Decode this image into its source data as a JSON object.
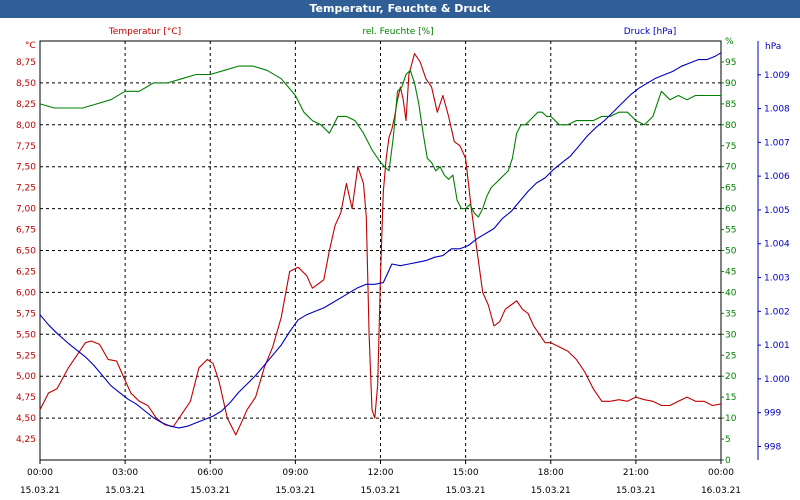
{
  "window": {
    "title": "Temperatur, Feuchte & Druck"
  },
  "colors": {
    "temp": "#c00000",
    "hum": "#008000",
    "press": "#0000c0",
    "title_bg": "#2f5f96"
  },
  "chart_data": {
    "type": "line",
    "title": "Temperatur, Feuchte & Druck",
    "x_ticks": [
      {
        "time": "00:00",
        "date": "15.03.21"
      },
      {
        "time": "03:00",
        "date": "15.03.21"
      },
      {
        "time": "06:00",
        "date": "15.03.21"
      },
      {
        "time": "09:00",
        "date": "15.03.21"
      },
      {
        "time": "12:00",
        "date": "15.03.21"
      },
      {
        "time": "15:00",
        "date": "15.03.21"
      },
      {
        "time": "18:00",
        "date": "15.03.21"
      },
      {
        "time": "21:00",
        "date": "15.03.21"
      },
      {
        "time": "00:00",
        "date": "16.03.21"
      }
    ],
    "x_range_hours": [
      0,
      24
    ],
    "axes": {
      "temp": {
        "unit": "°C",
        "ylim": [
          4.0,
          9.0
        ],
        "ticks": [
          "4,25",
          "4,50",
          "4,75",
          "5,00",
          "5,25",
          "5,50",
          "5,75",
          "6,00",
          "6,25",
          "6,50",
          "6,75",
          "7,00",
          "7,25",
          "7,50",
          "7,75",
          "8,00",
          "8,25",
          "8,50",
          "8,75"
        ]
      },
      "hum": {
        "unit": "%",
        "ylim": [
          0,
          100
        ],
        "ticks": [
          "0",
          "5",
          "10",
          "15",
          "20",
          "25",
          "30",
          "35",
          "40",
          "45",
          "50",
          "55",
          "60",
          "65",
          "70",
          "75",
          "80",
          "85",
          "90",
          "95",
          "%"
        ]
      },
      "press": {
        "unit": "hPa",
        "ylim": [
          997.6,
          1010.0
        ],
        "ticks": [
          "998",
          "999",
          "1.000",
          "1.001",
          "1.002",
          "1.003",
          "1.004",
          "1.005",
          "1.006",
          "1.007",
          "1.008",
          "1.009",
          "hPa"
        ]
      }
    },
    "series": [
      {
        "name": "Temperatur [°C]",
        "axis": "temp",
        "x": [
          0,
          0.3,
          0.6,
          1,
          1.3,
          1.6,
          1.8,
          2.1,
          2.4,
          2.7,
          3,
          3.2,
          3.5,
          3.8,
          4.1,
          4.4,
          4.7,
          5,
          5.3,
          5.6,
          5.9,
          6.1,
          6.3,
          6.6,
          6.9,
          7.1,
          7.3,
          7.6,
          7.9,
          8.2,
          8.5,
          8.8,
          9.1,
          9.4,
          9.6,
          9.8,
          10,
          10.2,
          10.4,
          10.6,
          10.8,
          11,
          11.2,
          11.4,
          11.5,
          11.6,
          11.7,
          11.8,
          11.9,
          12,
          12.1,
          12.2,
          12.3,
          12.4,
          12.5,
          12.6,
          12.7,
          12.8,
          12.9,
          13,
          13.2,
          13.4,
          13.6,
          13.8,
          14,
          14.2,
          14.4,
          14.6,
          14.8,
          15,
          15.2,
          15.4,
          15.6,
          15.8,
          16,
          16.2,
          16.4,
          16.6,
          16.8,
          17,
          17.2,
          17.4,
          17.6,
          17.8,
          18,
          18.3,
          18.6,
          18.9,
          19.2,
          19.5,
          19.8,
          20.1,
          20.4,
          20.7,
          21,
          21.3,
          21.6,
          21.9,
          22.2,
          22.5,
          22.8,
          23.1,
          23.4,
          23.7,
          24
        ],
        "values": [
          4.6,
          4.8,
          4.85,
          5.1,
          5.25,
          5.4,
          5.42,
          5.38,
          5.2,
          5.18,
          4.95,
          4.8,
          4.7,
          4.65,
          4.5,
          4.42,
          4.4,
          4.55,
          4.7,
          5.1,
          5.2,
          5.15,
          4.95,
          4.5,
          4.3,
          4.45,
          4.6,
          4.75,
          5.1,
          5.35,
          5.7,
          6.25,
          6.3,
          6.2,
          6.05,
          6.1,
          6.15,
          6.5,
          6.8,
          6.95,
          7.3,
          7.0,
          7.5,
          7.3,
          6.9,
          5.5,
          4.6,
          4.5,
          4.9,
          6.2,
          7.2,
          7.6,
          7.85,
          7.95,
          8.1,
          8.3,
          8.45,
          8.3,
          8.05,
          8.6,
          8.85,
          8.75,
          8.55,
          8.45,
          8.15,
          8.35,
          8.1,
          7.8,
          7.75,
          7.6,
          7.0,
          6.5,
          6.0,
          5.85,
          5.6,
          5.65,
          5.8,
          5.85,
          5.9,
          5.8,
          5.75,
          5.6,
          5.5,
          5.4,
          5.4,
          5.35,
          5.3,
          5.2,
          5.05,
          4.85,
          4.7,
          4.7,
          4.72,
          4.7,
          4.75,
          4.72,
          4.7,
          4.65,
          4.65,
          4.7,
          4.75,
          4.7,
          4.7,
          4.65,
          4.67
        ]
      },
      {
        "name": "rel. Feuchte [%]",
        "axis": "hum",
        "x": [
          0,
          0.5,
          1,
          1.5,
          2,
          2.5,
          3,
          3.5,
          4,
          4.5,
          5,
          5.5,
          6,
          6.5,
          7,
          7.5,
          8,
          8.5,
          9,
          9.3,
          9.6,
          9.9,
          10.2,
          10.5,
          10.8,
          11.1,
          11.4,
          11.7,
          12,
          12.15,
          12.3,
          12.45,
          12.6,
          12.75,
          12.9,
          13.05,
          13.2,
          13.35,
          13.5,
          13.65,
          13.8,
          13.95,
          14.1,
          14.25,
          14.4,
          14.55,
          14.7,
          14.85,
          15,
          15.15,
          15.3,
          15.45,
          15.6,
          15.75,
          15.9,
          16.05,
          16.2,
          16.35,
          16.5,
          16.65,
          16.8,
          16.95,
          17.1,
          17.25,
          17.4,
          17.55,
          17.7,
          17.85,
          18,
          18.3,
          18.6,
          18.9,
          19.2,
          19.5,
          19.8,
          20.1,
          20.4,
          20.7,
          21,
          21.3,
          21.6,
          21.9,
          22.2,
          22.5,
          22.8,
          23.1,
          23.4,
          23.7,
          24
        ],
        "values": [
          85,
          84,
          84,
          84,
          85,
          86,
          88,
          88,
          90,
          90,
          91,
          92,
          92,
          93,
          94,
          94,
          93,
          91,
          87,
          83,
          81,
          80,
          78,
          82,
          82,
          81,
          78,
          74,
          71,
          70,
          69,
          77,
          88,
          89,
          92,
          93,
          90,
          85,
          78,
          72,
          71,
          69,
          70,
          68,
          67,
          68,
          62,
          60,
          60,
          61,
          59,
          58,
          60,
          63,
          65,
          66,
          67,
          68,
          69,
          72,
          78,
          80,
          80,
          81,
          82,
          83,
          83,
          82,
          82,
          80,
          80,
          81,
          81,
          81,
          82,
          82,
          83,
          83,
          81,
          80,
          82,
          88,
          86,
          87,
          86,
          87,
          87,
          87,
          87
        ]
      },
      {
        "name": "Druck [hPa]",
        "axis": "press",
        "x": [
          0,
          0.3,
          0.6,
          1,
          1.3,
          1.6,
          1.9,
          2.2,
          2.5,
          2.8,
          3.1,
          3.4,
          3.7,
          4,
          4.3,
          4.6,
          4.9,
          5.2,
          5.5,
          5.8,
          6.1,
          6.4,
          6.7,
          7,
          7.3,
          7.6,
          7.9,
          8.2,
          8.5,
          8.8,
          9.1,
          9.4,
          9.7,
          10,
          10.3,
          10.6,
          10.9,
          11.2,
          11.5,
          11.8,
          12.1,
          12.4,
          12.7,
          13,
          13.3,
          13.6,
          13.9,
          14.2,
          14.5,
          14.8,
          15.1,
          15.4,
          15.7,
          16,
          16.3,
          16.6,
          16.9,
          17.2,
          17.5,
          17.8,
          18.1,
          18.4,
          18.7,
          19,
          19.3,
          19.6,
          19.9,
          20.2,
          20.5,
          20.8,
          21.1,
          21.4,
          21.7,
          22,
          22.3,
          22.6,
          22.9,
          23.2,
          23.5,
          23.8,
          24
        ],
        "values": [
          1001.9,
          1001.6,
          1001.35,
          1001.05,
          1000.85,
          1000.65,
          1000.4,
          1000.1,
          999.8,
          999.6,
          999.4,
          999.25,
          999.05,
          998.85,
          998.7,
          998.6,
          998.55,
          998.6,
          998.7,
          998.8,
          998.9,
          999.05,
          999.3,
          999.6,
          999.85,
          1000.1,
          1000.4,
          1000.7,
          1001.0,
          1001.4,
          1001.75,
          1001.9,
          1002.0,
          1002.1,
          1002.25,
          1002.4,
          1002.55,
          1002.7,
          1002.8,
          1002.8,
          1002.85,
          1003.4,
          1003.35,
          1003.4,
          1003.45,
          1003.5,
          1003.6,
          1003.65,
          1003.85,
          1003.85,
          1003.95,
          1004.15,
          1004.3,
          1004.45,
          1004.75,
          1004.95,
          1005.25,
          1005.55,
          1005.8,
          1005.95,
          1006.2,
          1006.4,
          1006.6,
          1006.9,
          1007.2,
          1007.45,
          1007.65,
          1007.9,
          1008.15,
          1008.4,
          1008.6,
          1008.75,
          1008.9,
          1009.0,
          1009.1,
          1009.25,
          1009.35,
          1009.45,
          1009.45,
          1009.55,
          1009.65
        ]
      }
    ]
  }
}
